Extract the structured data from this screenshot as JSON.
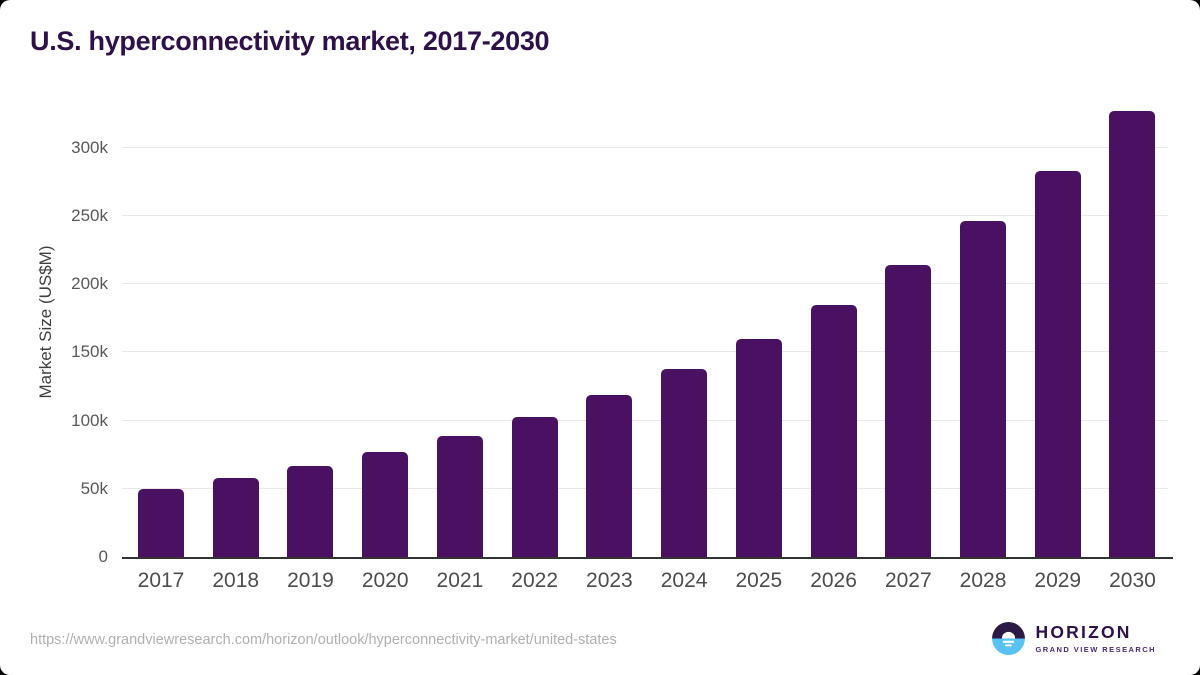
{
  "chart_data": {
    "type": "bar",
    "title": "U.S. hyperconnectivity market, 2017-2030",
    "categories": [
      "2017",
      "2018",
      "2019",
      "2020",
      "2021",
      "2022",
      "2023",
      "2024",
      "2025",
      "2026",
      "2027",
      "2028",
      "2029",
      "2030"
    ],
    "values": [
      50000,
      57900,
      66600,
      77000,
      89000,
      102900,
      118600,
      138000,
      159700,
      184700,
      214400,
      246100,
      283300,
      326700
    ],
    "xlabel": "",
    "ylabel": "Market Size (US$M)",
    "ylim": [
      0,
      335000
    ],
    "yticks": [
      {
        "value": 0,
        "label": "0"
      },
      {
        "value": 50000,
        "label": "50k"
      },
      {
        "value": 100000,
        "label": "100k"
      },
      {
        "value": 150000,
        "label": "150k"
      },
      {
        "value": 200000,
        "label": "200k"
      },
      {
        "value": 250000,
        "label": "250k"
      },
      {
        "value": 300000,
        "label": "300k"
      }
    ],
    "grid": "horizontal",
    "legend": "none"
  },
  "colors": {
    "bar": "#4A1162",
    "title": "#2E1148",
    "axis": "#333333",
    "grid": "#E8E8E8",
    "xlabel": "#4D4D4D",
    "ylabel": "#595959",
    "ytitle": "#404040",
    "source": "#B0B0B0",
    "logo_dark_half": "#2B1A45",
    "logo_blue_half": "#58C3F2",
    "logo_subtitle": "#4A2B6E"
  },
  "footer": {
    "source_url": "https://www.grandviewresearch.com/horizon/outlook/hyperconnectivity-market/united-states",
    "logo": {
      "title": "HORIZON",
      "subtitle": "GRAND VIEW RESEARCH"
    }
  }
}
